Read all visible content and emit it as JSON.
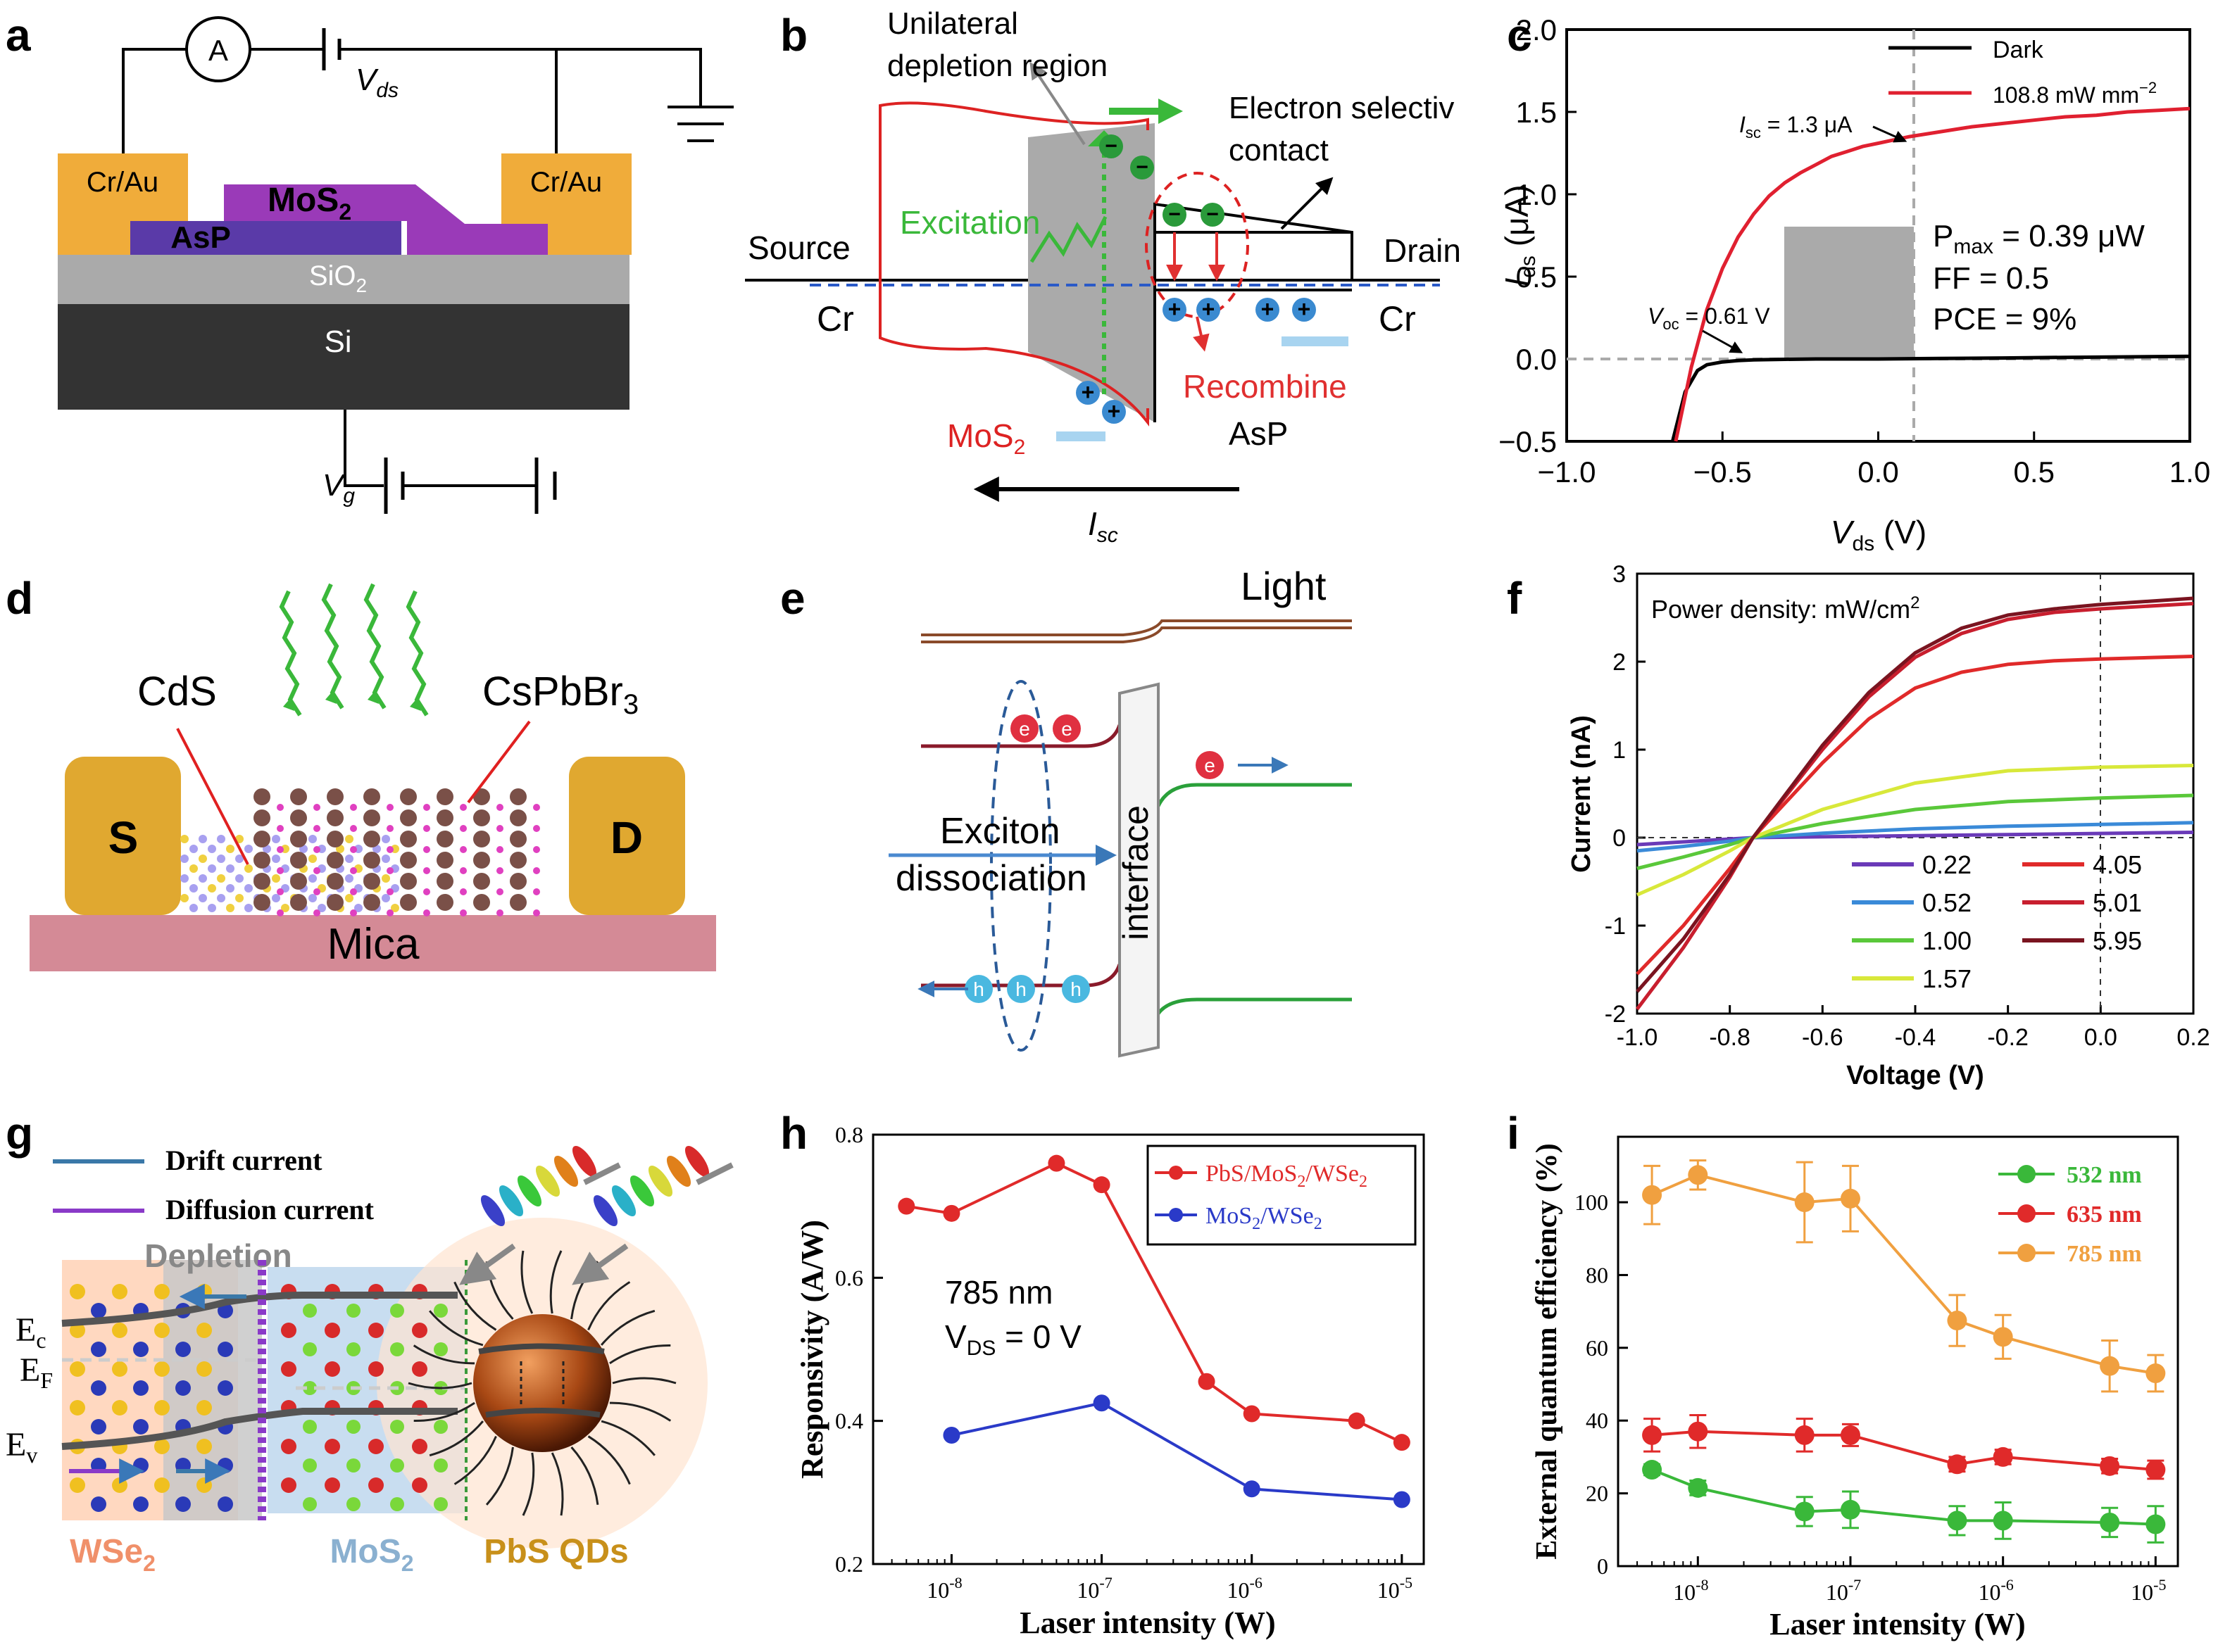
{
  "figure": {
    "panel_labels": [
      "a",
      "b",
      "c",
      "d",
      "e",
      "f",
      "g",
      "h",
      "i"
    ]
  },
  "panel_a": {
    "ammeter": "A",
    "vds": "V",
    "vds_sub": "ds",
    "contact_left": "Cr/Au",
    "contact_right": "Cr/Au",
    "mos2": "MoS",
    "mos2_sub": "2",
    "asp": "AsP",
    "sio2": "SiO",
    "sio2_sub": "2",
    "si": "Si",
    "vg": "V",
    "vg_sub": "g",
    "colors": {
      "gold": "#f0ac3a",
      "purple": "#9a3ab8",
      "asp": "#5a3aa8",
      "sio2": "#aaaaaa",
      "si": "#333333"
    }
  },
  "panel_b": {
    "unilateral_line1": "Unilateral",
    "unilateral_line2": "depletion region",
    "electron_line1": "Electron selectiv",
    "electron_line2": "contact",
    "source": "Source",
    "drain": "Drain",
    "cr_left": "Cr",
    "cr_right": "Cr",
    "excitation": "Excitation",
    "recombine": "Recombine",
    "mos2": "MoS",
    "mos2_sub": "2",
    "asp": "AsP",
    "isc": "I",
    "isc_sub": "sc",
    "electron_sign": "−",
    "hole_sign": "+"
  },
  "panel_c": {
    "ylabel": "I",
    "ylabel_sub": "ds",
    "ylabel_unit": " (μA)",
    "xlabel": "V",
    "xlabel_sub": "ds",
    "xlabel_unit": " (V)",
    "legend_dark": "Dark",
    "legend_light": "108.8 mW mm",
    "legend_light_sup": "−2",
    "isc_label": "I",
    "isc_sub": "sc",
    "isc_value": " = 1.3 μA",
    "voc_label": "V",
    "voc_sub": "oc",
    "voc_value": " = 0.61 V",
    "pmax_label": "P",
    "pmax_sub": "max",
    "pmax_value": " = 0.39 μW",
    "ff": "FF = 0.5",
    "pce": "PCE = 9%",
    "xticks": [
      "−1.0",
      "−0.5",
      "0.0",
      "0.5",
      "1.0"
    ],
    "yticks": [
      "−0.5",
      "0.0",
      "0.5",
      "1.0",
      "1.5",
      "2.0"
    ]
  },
  "panel_d": {
    "cds": "CdS",
    "cspbbr3": "CsPbBr",
    "cspbbr3_sub": "3",
    "s": "S",
    "d": "D",
    "mica": "Mica"
  },
  "panel_e": {
    "light": "Light",
    "exciton": "Exciton",
    "dissociation": "dissociation",
    "interface": "interface",
    "e": "e",
    "h": "h"
  },
  "panel_f": {
    "power_title": "Power density: mW/cm",
    "power_sup": "2",
    "ylabel": "Current (nA)",
    "xlabel": "Voltage (V)",
    "xticks": [
      "-1.0",
      "-0.8",
      "-0.6",
      "-0.4",
      "-0.2",
      "0.0",
      "0.2"
    ],
    "yticks": [
      "-2",
      "-1",
      "0",
      "1",
      "2",
      "3"
    ],
    "legend": [
      "0.22",
      "0.52",
      "1.00",
      "1.57",
      "4.05",
      "5.01",
      "5.95"
    ]
  },
  "panel_g": {
    "drift": "Drift current",
    "diffusion": "Diffusion current",
    "depletion": "Depletion",
    "ec": "E",
    "ec_sub": "c",
    "ef": "E",
    "ef_sub": "F",
    "ev": "E",
    "ev_sub": "v",
    "wse2": "WSe",
    "wse2_sub": "2",
    "mos2": "MoS",
    "mos2_sub": "2",
    "pbs": "PbS QDs"
  },
  "panel_h": {
    "annotation_line1": "785 nm",
    "annotation_v": "V",
    "annotation_sub": "DS",
    "annotation_value": " = 0 V",
    "legend_1": "PbS/MoS",
    "legend_1_sub": "2",
    "legend_1_b": "/WSe",
    "legend_1_sub2": "2",
    "legend_2": "MoS",
    "legend_2_sub": "2",
    "legend_2_b": "/WSe",
    "legend_2_sub2": "2",
    "ylabel": "Responsivity (A/W)",
    "xlabel": "Laser intensity (W)",
    "xtick_base": "10",
    "xtick_exps": [
      "-8",
      "-7",
      "-6",
      "-5"
    ],
    "yticks": [
      "0.2",
      "0.4",
      "0.6",
      "0.8"
    ]
  },
  "panel_i": {
    "legend": [
      "532 nm",
      "635 nm",
      "785 nm"
    ],
    "ylabel": "External quantum efficiency (%)",
    "xlabel": "Laser intensity (W)",
    "xtick_base": "10",
    "xtick_exps": [
      "-8",
      "-7",
      "-6",
      "-5"
    ],
    "yticks": [
      "0",
      "20",
      "40",
      "60",
      "80",
      "100"
    ]
  },
  "chart_data": [
    {
      "panel": "c",
      "type": "line",
      "xlabel": "Vds (V)",
      "ylabel": "Ids (μA)",
      "xlim": [
        -1.0,
        1.0
      ],
      "ylim": [
        -0.5,
        2.0
      ],
      "series": [
        {
          "name": "Dark",
          "color": "#000000",
          "x": [
            -0.66,
            -0.62,
            -0.58,
            -0.55,
            -0.5,
            -0.45,
            -0.4,
            -0.3,
            -0.2,
            -0.1,
            0.0,
            0.2,
            0.4,
            0.6,
            0.8,
            1.0
          ],
          "y": [
            -0.5,
            -0.2,
            -0.07,
            -0.035,
            -0.018,
            -0.01,
            -0.005,
            -0.002,
            0,
            0,
            0,
            0.003,
            0.006,
            0.01,
            0.013,
            0.016
          ]
        },
        {
          "name": "108.8 mW mm−2",
          "color": "#e02030",
          "x": [
            -0.65,
            -0.6,
            -0.55,
            -0.5,
            -0.45,
            -0.4,
            -0.35,
            -0.3,
            -0.25,
            -0.2,
            -0.15,
            -0.1,
            -0.05,
            0.0,
            0.1,
            0.2,
            0.3,
            0.4,
            0.5,
            0.6,
            0.7,
            0.8,
            0.9,
            1.0
          ],
          "y": [
            -0.5,
            -0.05,
            0.3,
            0.55,
            0.74,
            0.88,
            0.99,
            1.07,
            1.13,
            1.18,
            1.23,
            1.26,
            1.29,
            1.31,
            1.35,
            1.38,
            1.41,
            1.43,
            1.45,
            1.47,
            1.48,
            1.5,
            1.51,
            1.52
          ]
        }
      ]
    },
    {
      "panel": "f",
      "type": "line",
      "xlabel": "Voltage (V)",
      "ylabel": "Current (nA)",
      "xlim": [
        -1.0,
        0.2
      ],
      "ylim": [
        -2,
        3
      ],
      "series": [
        {
          "name": "0.22",
          "color": "#6a3ab8",
          "x": [
            -1.0,
            -0.75,
            0.2
          ],
          "y": [
            -0.08,
            0.0,
            0.06
          ]
        },
        {
          "name": "0.52",
          "color": "#3a8ad8",
          "x": [
            -1.0,
            -0.9,
            -0.8,
            -0.75,
            -0.6,
            -0.4,
            -0.2,
            0.0,
            0.2
          ],
          "y": [
            -0.15,
            -0.1,
            -0.04,
            0.0,
            0.05,
            0.1,
            0.13,
            0.15,
            0.17
          ]
        },
        {
          "name": "1.00",
          "color": "#5ac83a",
          "x": [
            -1.0,
            -0.9,
            -0.8,
            -0.75,
            -0.6,
            -0.4,
            -0.2,
            0.0,
            0.2
          ],
          "y": [
            -0.35,
            -0.22,
            -0.08,
            0.0,
            0.16,
            0.32,
            0.41,
            0.45,
            0.48
          ]
        },
        {
          "name": "1.57",
          "color": "#d8e83a",
          "x": [
            -1.0,
            -0.9,
            -0.8,
            -0.75,
            -0.6,
            -0.4,
            -0.2,
            0.0,
            0.2
          ],
          "y": [
            -0.65,
            -0.42,
            -0.15,
            0.0,
            0.32,
            0.62,
            0.76,
            0.8,
            0.82
          ]
        },
        {
          "name": "4.05",
          "color": "#e02a2a",
          "x": [
            -1.0,
            -0.9,
            -0.8,
            -0.75,
            -0.6,
            -0.5,
            -0.4,
            -0.3,
            -0.2,
            -0.1,
            0.0,
            0.2
          ],
          "y": [
            -1.55,
            -1.0,
            -0.35,
            0.0,
            0.85,
            1.35,
            1.7,
            1.88,
            1.97,
            2.01,
            2.03,
            2.06
          ]
        },
        {
          "name": "5.01",
          "color": "#c81e2e",
          "x": [
            -1.0,
            -0.9,
            -0.8,
            -0.75,
            -0.6,
            -0.5,
            -0.4,
            -0.3,
            -0.2,
            -0.1,
            0.0,
            0.2
          ],
          "y": [
            -1.95,
            -1.25,
            -0.45,
            0.0,
            1.0,
            1.6,
            2.05,
            2.32,
            2.48,
            2.56,
            2.6,
            2.66
          ]
        },
        {
          "name": "5.95",
          "color": "#7a1420",
          "x": [
            -1.0,
            -0.9,
            -0.8,
            -0.75,
            -0.6,
            -0.5,
            -0.4,
            -0.3,
            -0.2,
            -0.1,
            0.0,
            0.2
          ],
          "y": [
            -1.75,
            -1.15,
            -0.42,
            0.0,
            1.05,
            1.65,
            2.1,
            2.38,
            2.53,
            2.6,
            2.65,
            2.72
          ]
        }
      ]
    },
    {
      "panel": "h",
      "type": "line",
      "xlabel": "Laser intensity (W)",
      "ylabel": "Responsivity (A/W)",
      "xscale": "log",
      "xlim": [
        3e-09,
        1.4e-05
      ],
      "ylim": [
        0.2,
        0.8
      ],
      "series": [
        {
          "name": "PbS/MoS2/WSe2",
          "color": "#e02a2a",
          "x": [
            5e-09,
            1e-08,
            5e-08,
            1e-07,
            5e-07,
            1e-06,
            5e-06,
            1e-05
          ],
          "y": [
            0.7,
            0.69,
            0.76,
            0.73,
            0.455,
            0.41,
            0.4,
            0.37
          ]
        },
        {
          "name": "MoS2/WSe2",
          "color": "#2a3ac8",
          "x": [
            1e-08,
            1e-07,
            1e-06,
            1e-05
          ],
          "y": [
            0.38,
            0.425,
            0.305,
            0.29
          ]
        }
      ]
    },
    {
      "panel": "i",
      "type": "line",
      "xlabel": "Laser intensity (W)",
      "ylabel": "External quantum efficiency (%)",
      "xscale": "log",
      "xlim": [
        3e-09,
        1.4e-05
      ],
      "ylim": [
        0,
        118
      ],
      "series": [
        {
          "name": "532 nm",
          "color": "#3ab83a",
          "x": [
            5e-09,
            1e-08,
            5e-08,
            1e-07,
            5e-07,
            1e-06,
            5e-06,
            1e-05
          ],
          "y": [
            26.5,
            21.5,
            15,
            15.5,
            12.5,
            12.5,
            12,
            11.5
          ],
          "err": [
            1.5,
            2,
            4,
            5,
            4,
            5,
            4,
            5
          ]
        },
        {
          "name": "635 nm",
          "color": "#e02a2a",
          "x": [
            5e-09,
            1e-08,
            5e-08,
            1e-07,
            5e-07,
            1e-06,
            5e-06,
            1e-05
          ],
          "y": [
            36,
            37,
            36,
            36,
            28,
            30,
            27.5,
            26.5
          ],
          "err": [
            4.5,
            4.5,
            4.5,
            3,
            2,
            2,
            2,
            2.5
          ]
        },
        {
          "name": "785 nm",
          "color": "#f0a040",
          "x": [
            5e-09,
            1e-08,
            5e-08,
            1e-07,
            5e-07,
            1e-06,
            5e-06,
            1e-05
          ],
          "y": [
            102,
            107.5,
            100,
            101,
            67.5,
            63,
            55,
            53
          ],
          "err": [
            8,
            4,
            11,
            9,
            7,
            6,
            7,
            5
          ]
        }
      ]
    }
  ]
}
